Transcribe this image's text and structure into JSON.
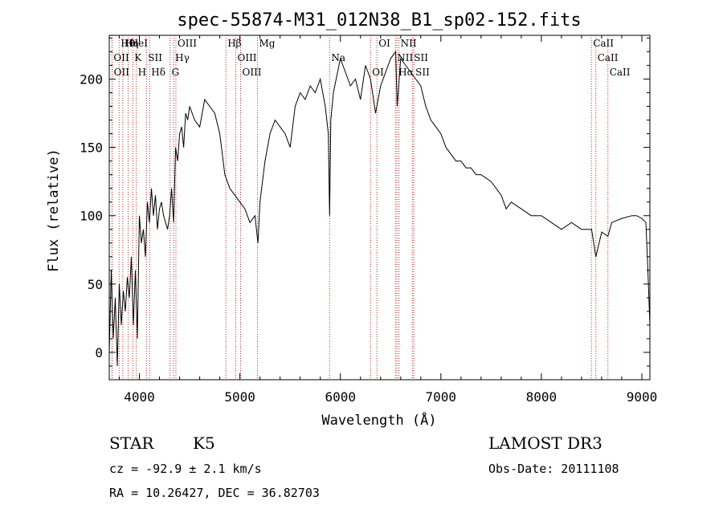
{
  "chart_data": {
    "type": "line",
    "title": "spec-55874-M31_012N38_B1_sp02-152.fits",
    "xlabel": "Wavelength (Å)",
    "ylabel": "Flux (relative)",
    "xlim": [
      3700,
      9080
    ],
    "ylim": [
      -20,
      232
    ],
    "xticks": [
      4000,
      5000,
      6000,
      7000,
      8000,
      9000
    ],
    "yticks": [
      0,
      50,
      100,
      150,
      200
    ],
    "grid": false,
    "series": [
      {
        "name": "spectrum",
        "x": [
          3700,
          3720,
          3740,
          3760,
          3780,
          3800,
          3820,
          3840,
          3860,
          3880,
          3900,
          3920,
          3940,
          3960,
          3980,
          4000,
          4020,
          4040,
          4060,
          4080,
          4100,
          4120,
          4140,
          4160,
          4180,
          4200,
          4220,
          4240,
          4260,
          4280,
          4300,
          4320,
          4340,
          4360,
          4380,
          4400,
          4420,
          4440,
          4460,
          4480,
          4500,
          4550,
          4600,
          4650,
          4700,
          4750,
          4800,
          4850,
          4900,
          4950,
          5000,
          5050,
          5100,
          5150,
          5180,
          5200,
          5250,
          5300,
          5350,
          5400,
          5450,
          5500,
          5550,
          5600,
          5650,
          5700,
          5750,
          5800,
          5850,
          5880,
          5893,
          5905,
          5930,
          6000,
          6050,
          6100,
          6150,
          6200,
          6250,
          6300,
          6350,
          6400,
          6450,
          6500,
          6550,
          6565,
          6600,
          6650,
          6700,
          6750,
          6800,
          6850,
          6900,
          6950,
          7000,
          7050,
          7100,
          7150,
          7200,
          7250,
          7300,
          7350,
          7400,
          7500,
          7600,
          7650,
          7700,
          7800,
          7900,
          8000,
          8100,
          8200,
          8300,
          8400,
          8500,
          8542,
          8600,
          8662,
          8700,
          8800,
          8900,
          8950,
          9000,
          9040,
          9060,
          9080
        ],
        "values": [
          0,
          60,
          10,
          40,
          -10,
          50,
          20,
          45,
          30,
          55,
          40,
          70,
          20,
          60,
          10,
          100,
          80,
          90,
          70,
          110,
          95,
          120,
          100,
          115,
          90,
          105,
          110,
          100,
          95,
          90,
          100,
          120,
          95,
          150,
          140,
          160,
          165,
          150,
          175,
          170,
          180,
          170,
          165,
          185,
          180,
          175,
          160,
          130,
          120,
          115,
          110,
          105,
          95,
          100,
          80,
          110,
          140,
          160,
          170,
          165,
          160,
          150,
          180,
          190,
          185,
          195,
          190,
          200,
          180,
          160,
          100,
          170,
          190,
          215,
          205,
          195,
          200,
          185,
          210,
          200,
          175,
          195,
          205,
          215,
          220,
          180,
          215,
          210,
          205,
          200,
          195,
          180,
          170,
          165,
          160,
          150,
          145,
          140,
          140,
          135,
          135,
          130,
          130,
          125,
          115,
          105,
          110,
          105,
          100,
          100,
          95,
          90,
          95,
          90,
          90,
          70,
          88,
          85,
          95,
          98,
          100,
          100,
          98,
          95,
          60,
          20
        ]
      }
    ],
    "lines": [
      {
        "name": "Hθ",
        "x": 3798
      },
      {
        "name": "OII",
        "x": 3727
      },
      {
        "name": "OII",
        "x": 3729
      },
      {
        "name": "Hη",
        "x": 3835
      },
      {
        "name": "K",
        "x": 3934
      },
      {
        "name": "H",
        "x": 3969
      },
      {
        "name": "HeI",
        "x": 3889
      },
      {
        "name": "SII",
        "x": 4070
      },
      {
        "name": "Hδ",
        "x": 4102
      },
      {
        "name": "OIII",
        "x": 4363
      },
      {
        "name": "Hγ",
        "x": 4341
      },
      {
        "name": "G",
        "x": 4305
      },
      {
        "name": "Hβ",
        "x": 4861
      },
      {
        "name": "OIII",
        "x": 4959
      },
      {
        "name": "OIII",
        "x": 5007
      },
      {
        "name": "Mg",
        "x": 5175
      },
      {
        "name": "Na",
        "x": 5893
      },
      {
        "name": "OI",
        "x": 6300
      },
      {
        "name": "OI",
        "x": 6364
      },
      {
        "name": "NII",
        "x": 6548
      },
      {
        "name": "Hα",
        "x": 6563
      },
      {
        "name": "NII",
        "x": 6583
      },
      {
        "name": "SII",
        "x": 6716
      },
      {
        "name": "SII",
        "x": 6731
      },
      {
        "name": "CaII",
        "x": 8498
      },
      {
        "name": "CaII",
        "x": 8542
      },
      {
        "name": "CaII",
        "x": 8662
      }
    ]
  },
  "info": {
    "class": "STAR",
    "subclass": "K5",
    "survey": "LAMOST DR3",
    "cz": "cz = -92.9 ± 2.1 km/s",
    "obs_date": "Obs-Date: 20111108",
    "radec": "RA =  10.26427, DEC =  36.82703"
  },
  "colors": {
    "line_marker": "#cc2222",
    "spectrum": "#000000",
    "axes": "#000000"
  }
}
